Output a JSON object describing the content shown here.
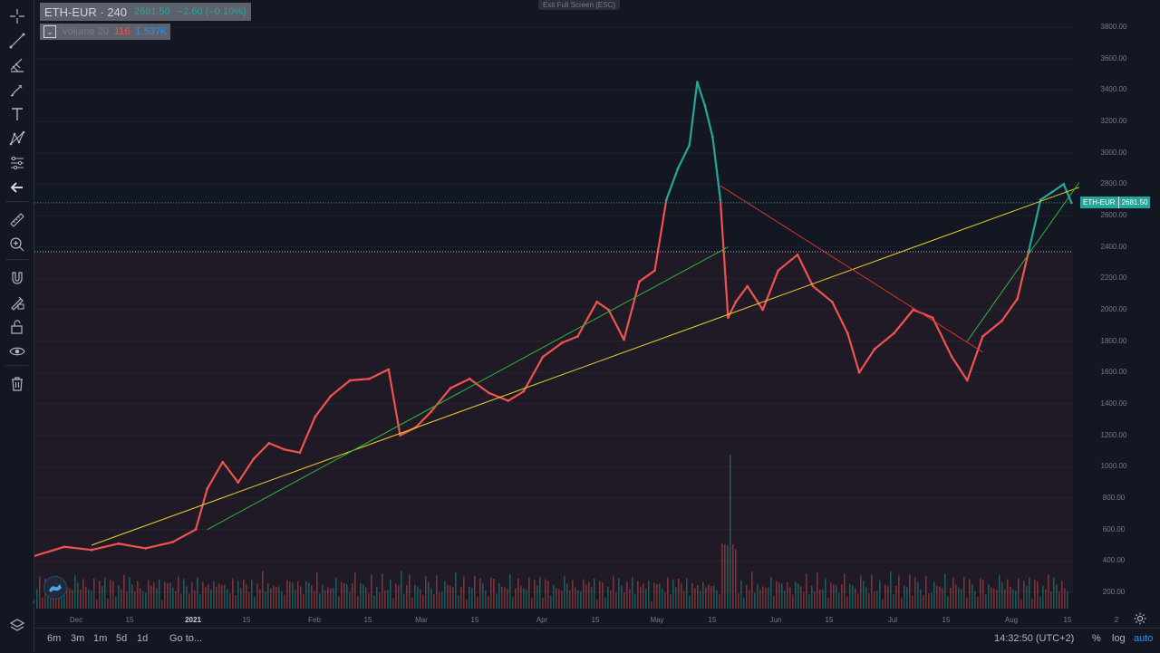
{
  "legend": {
    "symbol": "ETH-EUR · 240",
    "last_price": "2681.50",
    "change": "−2.60 (−0.10%)",
    "collapse_icon": "chevron-down-icon",
    "volume_label": "Volume 20",
    "volume_value": "116",
    "volume_ma": "1.537K"
  },
  "exit_fullscreen": "Exit Full Screen (ESC)",
  "price_axis": {
    "ticks": [
      "3800.00",
      "3600.00",
      "3400.00",
      "3200.00",
      "3000.00",
      "2800.00",
      "2600.00",
      "2400.00",
      "2200.00",
      "2000.00",
      "1800.00",
      "1600.00",
      "1400.00",
      "1200.00",
      "1000.00",
      "800.00",
      "600.00",
      "400.00",
      "200.00"
    ],
    "current_label_symbol": "ETH-EUR",
    "current_label_price": "2681.50"
  },
  "time_axis": {
    "ticks": [
      "Dec",
      "15",
      "2021",
      "15",
      "Feb",
      "15",
      "Mar",
      "15",
      "Apr",
      "15",
      "May",
      "15",
      "Jun",
      "15",
      "Jul",
      "15",
      "Aug",
      "15",
      "2"
    ]
  },
  "bottom_bar": {
    "ranges": [
      "6m",
      "3m",
      "1m",
      "5d",
      "1d"
    ],
    "goto": "Go to...",
    "clock": "14:32:50 (UTC+2)",
    "percent": "%",
    "log": "log",
    "auto": "auto"
  },
  "toolbar": {
    "icons": [
      "crosshair-icon",
      "trend-line-icon",
      "pitchfork-icon",
      "brush-icon",
      "text-icon",
      "pattern-icon",
      "prediction-icon",
      "back-arrow-icon",
      "ruler-icon",
      "zoom-in-icon",
      "magnet-icon",
      "lock-drawing-icon",
      "unlock-icon",
      "eye-icon",
      "trash-icon",
      "layers-icon"
    ]
  },
  "colors": {
    "background": "#131722",
    "up": "#26a69a",
    "down": "#ef5350",
    "trend_yellow": "#e6d22c",
    "trend_green": "#2bb63a",
    "trend_red": "#e0322e"
  },
  "chart_data": {
    "type": "line",
    "symbol": "ETH-EUR",
    "interval": "240",
    "ylim": [
      0,
      3900
    ],
    "baseline": 2370,
    "x": [
      "2020-11-20",
      "2020-11-28",
      "2020-12-05",
      "2020-12-12",
      "2020-12-19",
      "2020-12-26",
      "2021-01-01",
      "2021-01-04",
      "2021-01-08",
      "2021-01-12",
      "2021-01-16",
      "2021-01-20",
      "2021-01-24",
      "2021-01-28",
      "2021-02-01",
      "2021-02-05",
      "2021-02-10",
      "2021-02-15",
      "2021-02-20",
      "2021-02-23",
      "2021-02-27",
      "2021-03-03",
      "2021-03-08",
      "2021-03-13",
      "2021-03-18",
      "2021-03-23",
      "2021-03-27",
      "2021-04-01",
      "2021-04-06",
      "2021-04-10",
      "2021-04-15",
      "2021-04-18",
      "2021-04-22",
      "2021-04-26",
      "2021-04-30",
      "2021-05-03",
      "2021-05-06",
      "2021-05-09",
      "2021-05-11",
      "2021-05-13",
      "2021-05-15",
      "2021-05-17",
      "2021-05-19",
      "2021-05-21",
      "2021-05-24",
      "2021-05-28",
      "2021-06-01",
      "2021-06-06",
      "2021-06-10",
      "2021-06-15",
      "2021-06-19",
      "2021-06-22",
      "2021-06-26",
      "2021-07-01",
      "2021-07-06",
      "2021-07-11",
      "2021-07-16",
      "2021-07-20",
      "2021-07-24",
      "2021-07-29",
      "2021-08-02",
      "2021-08-05",
      "2021-08-08",
      "2021-08-11",
      "2021-08-14",
      "2021-08-16"
    ],
    "y": [
      430,
      490,
      470,
      510,
      480,
      520,
      600,
      860,
      1030,
      900,
      1050,
      1150,
      1110,
      1090,
      1320,
      1450,
      1550,
      1560,
      1620,
      1200,
      1250,
      1350,
      1500,
      1560,
      1470,
      1420,
      1480,
      1700,
      1790,
      1830,
      2050,
      2000,
      1810,
      2180,
      2250,
      2700,
      2900,
      3050,
      3450,
      3300,
      3100,
      2700,
      1950,
      2050,
      2150,
      2000,
      2250,
      2350,
      2150,
      2050,
      1850,
      1600,
      1750,
      1850,
      2000,
      1950,
      1700,
      1550,
      1830,
      1930,
      2070,
      2380,
      2700,
      2750,
      2800,
      2681.5
    ],
    "trendlines": [
      {
        "color": "yellow",
        "from": [
          "2020-12-05",
          500
        ],
        "to": [
          "2021-08-18",
          2780
        ]
      },
      {
        "color": "green",
        "from": [
          "2021-01-04",
          600
        ],
        "to": [
          "2021-05-19",
          2400
        ]
      },
      {
        "color": "green",
        "from": [
          "2021-07-20",
          1800
        ],
        "to": [
          "2021-08-18",
          2810
        ]
      },
      {
        "color": "red",
        "from": [
          "2021-05-17",
          2790
        ],
        "to": [
          "2021-07-24",
          1730
        ]
      }
    ],
    "volume_peak_date": "2021-05-19",
    "grid": true
  }
}
